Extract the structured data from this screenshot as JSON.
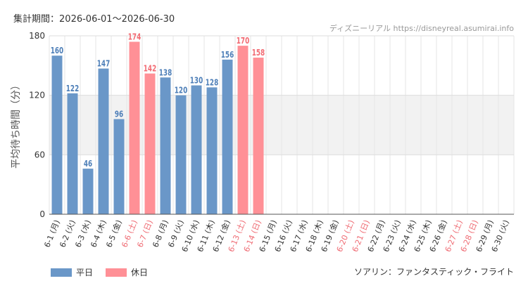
{
  "header": {
    "period_label": "集計期間",
    "period_value": "2026-06-01～2026-06-30",
    "source_name": "ディズニーリアル",
    "source_url": "https://disneyreal.asumirai.info"
  },
  "legend": [
    {
      "label": "平日",
      "color": "#6a97c8"
    },
    {
      "label": "休日",
      "color": "#ff9096"
    }
  ],
  "footer": {
    "attraction": "ソアリン：ファンタスティック・フライト"
  },
  "colors": {
    "weekday_bar": "#6a97c8",
    "holiday_bar": "#ff9096",
    "weekday_label": "#4e7fb8",
    "holiday_label": "#f26b73",
    "weekday_tick": "#333333",
    "holiday_tick": "#ef6b73",
    "band": "#f2f2f2"
  },
  "chart_data": {
    "type": "bar",
    "ylabel": "平均待ち時間（分）",
    "ylim": [
      0,
      180
    ],
    "yticks": [
      0,
      60,
      120,
      180
    ],
    "shaded_band": [
      60,
      120
    ],
    "grid": true,
    "categories": [
      "6-1 (月)",
      "6-2 (火)",
      "6-3 (水)",
      "6-4 (木)",
      "6-5 (金)",
      "6-6 (土)",
      "6-7 (日)",
      "6-8 (月)",
      "6-9 (火)",
      "6-10 (水)",
      "6-11 (木)",
      "6-12 (金)",
      "6-13 (土)",
      "6-14 (日)",
      "6-15 (月)",
      "6-16 (火)",
      "6-17 (水)",
      "6-18 (木)",
      "6-19 (金)",
      "6-20 (土)",
      "6-21 (日)",
      "6-22 (月)",
      "6-23 (火)",
      "6-24 (水)",
      "6-25 (木)",
      "6-26 (金)",
      "6-27 (土)",
      "6-28 (日)",
      "6-29 (月)",
      "6-30 (火)"
    ],
    "values": [
      160,
      122,
      46,
      147,
      96,
      174,
      142,
      138,
      120,
      130,
      128,
      156,
      170,
      158,
      null,
      null,
      null,
      null,
      null,
      null,
      null,
      null,
      null,
      null,
      null,
      null,
      null,
      null,
      null,
      null
    ],
    "holiday": [
      false,
      false,
      false,
      false,
      false,
      true,
      true,
      false,
      false,
      false,
      false,
      false,
      true,
      true,
      false,
      false,
      false,
      false,
      false,
      true,
      true,
      false,
      false,
      false,
      false,
      false,
      true,
      true,
      false,
      false
    ],
    "legend_position": "bottom-left"
  }
}
